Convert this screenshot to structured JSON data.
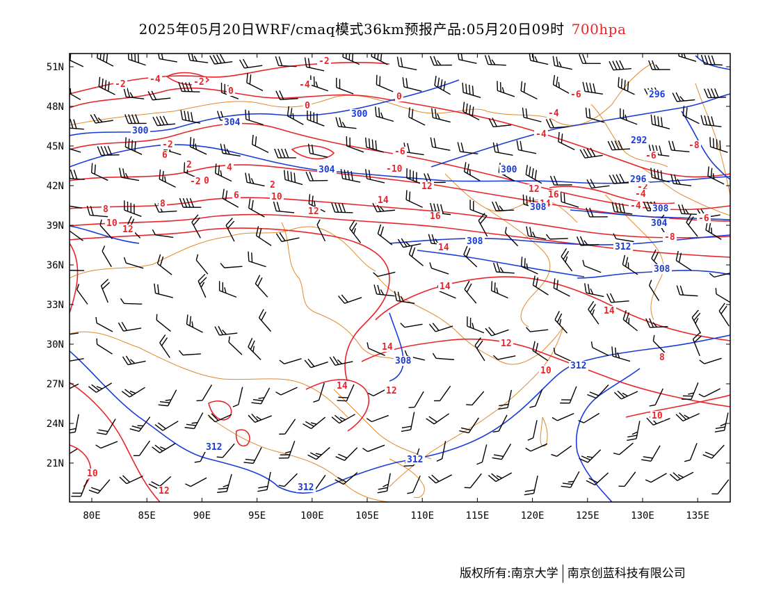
{
  "title": {
    "main": "2025年05月20日WRF/cmaq模式36km预报产品:05月20日09时",
    "level": "700hpa"
  },
  "axes": {
    "lat_ticks": [
      "51N",
      "48N",
      "45N",
      "42N",
      "39N",
      "36N",
      "33N",
      "30N",
      "27N",
      "24N",
      "21N"
    ],
    "lon_ticks": [
      "80E",
      "85E",
      "90E",
      "95E",
      "100E",
      "105E",
      "110E",
      "115E",
      "120E",
      "125E",
      "130E",
      "135E"
    ]
  },
  "colors": {
    "temperature": "#e8242b",
    "geopotential_height": "#1a3bd6",
    "boundary": "#e08a2c",
    "wind_barb": "#000000"
  },
  "temperature_labels": [
    "-2",
    "-4",
    "-2",
    "0",
    "-2",
    "-4",
    "-2",
    "0",
    "-4",
    "-6",
    "0",
    "-6",
    "-8",
    "-8",
    "8",
    "-4",
    "4",
    "2",
    "2",
    "0",
    "-2",
    "6",
    "-10",
    "8",
    "6",
    "12",
    "10",
    "12",
    "14",
    "16",
    "10",
    "12",
    "14",
    "14",
    "14",
    "-6",
    "-2",
    "-4",
    "-6",
    "-8",
    "-4",
    "-6",
    "16",
    "14",
    "14",
    "12",
    "14",
    "10",
    "10",
    "12",
    "8",
    "10",
    "12",
    "12"
  ],
  "height_labels": [
    "300",
    "304",
    "300",
    "304",
    "308",
    "296",
    "292",
    "296",
    "300",
    "308",
    "304",
    "308",
    "308",
    "312",
    "308",
    "312",
    "312",
    "312",
    "312"
  ],
  "footer": {
    "left": "版权所有:南京大学",
    "right": "南京创蓝科技有限公司"
  }
}
